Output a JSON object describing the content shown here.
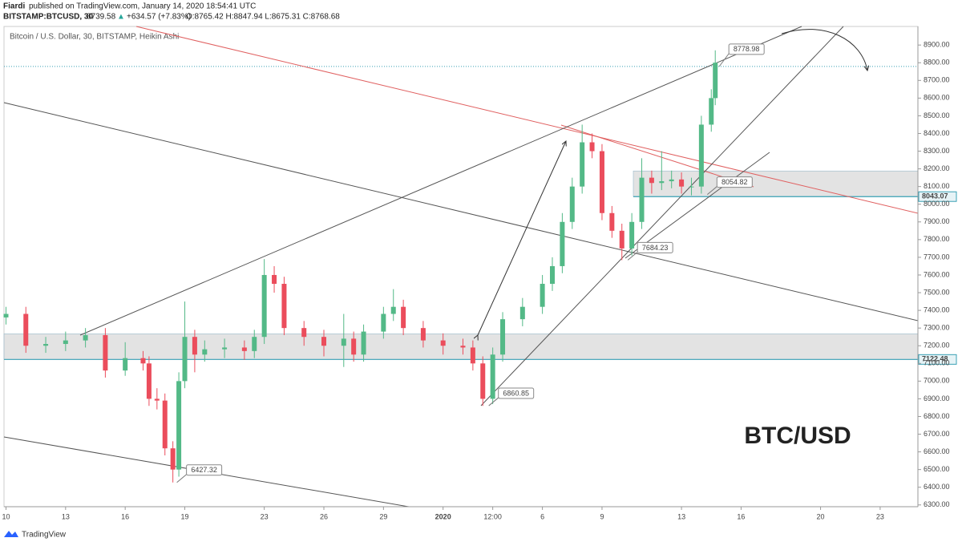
{
  "header": {
    "author": "Fiardi",
    "published": "published on TradingView.com, January 14, 2020 18:54:41 UTC",
    "symbol": "BITSTAMP:BTCUSD, 30",
    "last": "8739.58",
    "arrow": "▲",
    "change": "+634.57 (+7.83%)",
    "ohlc": "O:8765.42 H:8847.94 L:8675.31 C:8768.68"
  },
  "footer": {
    "brand": "TradingView"
  },
  "chart_data": {
    "type": "candlestick",
    "title": "Bitcoin / U.S. Dollar, 30, BITSTAMP, Heikin Ashi",
    "annotation": "BTC/USD",
    "up_color": "#53b987",
    "down_color": "#eb4d5c",
    "xlim": [
      -0.1,
      45.9
    ],
    "ylim": [
      6290,
      9005
    ],
    "xticks": [
      {
        "value": 0,
        "label": "10"
      },
      {
        "value": 3,
        "label": "13"
      },
      {
        "value": 6,
        "label": "16"
      },
      {
        "value": 9,
        "label": "19"
      },
      {
        "value": 13,
        "label": "23"
      },
      {
        "value": 16,
        "label": "26"
      },
      {
        "value": 19,
        "label": "29"
      },
      {
        "value": 22,
        "label": "2020"
      },
      {
        "value": 24.5,
        "label": "12:00"
      },
      {
        "value": 27,
        "label": "6"
      },
      {
        "value": 30,
        "label": "9"
      },
      {
        "value": 34,
        "label": "13"
      },
      {
        "value": 37,
        "label": "16"
      },
      {
        "value": 41,
        "label": "20"
      },
      {
        "value": 44,
        "label": "23"
      }
    ],
    "yticks": [
      {
        "value": 6300,
        "label": "6300.00"
      },
      {
        "value": 6400,
        "label": "6400.00"
      },
      {
        "value": 6500,
        "label": "6500.00"
      },
      {
        "value": 6600,
        "label": "6600.00"
      },
      {
        "value": 6700,
        "label": "6700.00"
      },
      {
        "value": 6800,
        "label": "6800.00"
      },
      {
        "value": 6900,
        "label": "6900.00"
      },
      {
        "value": 7000,
        "label": "7000.00"
      },
      {
        "value": 7100,
        "label": "7100.00"
      },
      {
        "value": 7200,
        "label": "7200.00"
      },
      {
        "value": 7300,
        "label": "7300.00"
      },
      {
        "value": 7400,
        "label": "7400.00"
      },
      {
        "value": 7500,
        "label": "7500.00"
      },
      {
        "value": 7600,
        "label": "7600.00"
      },
      {
        "value": 7700,
        "label": "7700.00"
      },
      {
        "value": 7800,
        "label": "7800.00"
      },
      {
        "value": 7900,
        "label": "7900.00"
      },
      {
        "value": 8000,
        "label": "8000.00"
      },
      {
        "value": 8100,
        "label": "8100.00"
      },
      {
        "value": 8200,
        "label": "8200.00"
      },
      {
        "value": 8300,
        "label": "8300.00"
      },
      {
        "value": 8400,
        "label": "8400.00"
      },
      {
        "value": 8500,
        "label": "8500.00"
      },
      {
        "value": 8600,
        "label": "8600.00"
      },
      {
        "value": 8700,
        "label": "8700.00"
      },
      {
        "value": 8800,
        "label": "8800.00"
      },
      {
        "value": 8900,
        "label": "8900.00"
      }
    ],
    "levels": [
      8043.07,
      7122.48
    ],
    "callouts": [
      {
        "value": 8778.98,
        "x": 35.9
      },
      {
        "value": 8054.82,
        "x": 35.3
      },
      {
        "value": 7684.23,
        "x": 31.3
      },
      {
        "value": 6860.85,
        "x": 24.3
      },
      {
        "value": 6427.32,
        "x": 8.6
      }
    ],
    "x": [
      0,
      1,
      2,
      3,
      4,
      5,
      6,
      6.9,
      7.2,
      7.6,
      8,
      8.4,
      8.7,
      9,
      9.5,
      10,
      11,
      12,
      12.5,
      13,
      13.5,
      14,
      15,
      16,
      17,
      17.5,
      18,
      19,
      19.5,
      20,
      21,
      22,
      23,
      23.5,
      24,
      24.5,
      25,
      26,
      27,
      27.5,
      28,
      28.5,
      29,
      29.5,
      30,
      30.5,
      31,
      31.5,
      32,
      32.5,
      33,
      33.5,
      34,
      34.5,
      35,
      35.5,
      35.7
    ],
    "open": [
      7360,
      7380,
      7200,
      7210,
      7230,
      7260,
      7060,
      7130,
      7100,
      6900,
      6890,
      6620,
      6500,
      7000,
      7250,
      7150,
      7180,
      7190,
      7170,
      7250,
      7600,
      7550,
      7300,
      7250,
      7200,
      7240,
      7150,
      7280,
      7380,
      7420,
      7300,
      7230,
      7200,
      7190,
      7100,
      6900,
      7150,
      7350,
      7420,
      7550,
      7650,
      7900,
      8100,
      8350,
      8300,
      7950,
      7850,
      7750,
      7900,
      8150,
      8120,
      8130,
      8140,
      8100,
      8100,
      8450,
      8600
    ],
    "high": [
      7420,
      7420,
      7250,
      7280,
      7300,
      7300,
      7220,
      7170,
      7140,
      6960,
      6930,
      6660,
      7050,
      7450,
      7290,
      7230,
      7240,
      7230,
      7290,
      7690,
      7650,
      7590,
      7340,
      7290,
      7380,
      7280,
      7320,
      7420,
      7520,
      7460,
      7340,
      7270,
      7240,
      7230,
      7140,
      7190,
      7390,
      7470,
      7600,
      7700,
      7950,
      8150,
      8450,
      8400,
      8340,
      7990,
      7890,
      7950,
      8260,
      8190,
      8300,
      8190,
      8180,
      8150,
      8500,
      8650,
      8870
    ],
    "low": [
      7320,
      7160,
      7160,
      7170,
      7190,
      7020,
      7030,
      7060,
      6860,
      6840,
      6580,
      6427,
      6460,
      6960,
      7050,
      7110,
      7130,
      7120,
      7130,
      7210,
      7500,
      7260,
      7200,
      7140,
      7080,
      7110,
      7110,
      7240,
      7340,
      7260,
      7190,
      7150,
      7150,
      7060,
      6860,
      6870,
      7110,
      7310,
      7380,
      7510,
      7610,
      7860,
      8060,
      8260,
      7910,
      7810,
      7684,
      7710,
      7860,
      8060,
      8080,
      8090,
      8060,
      8050,
      8060,
      8410,
      8560
    ],
    "close": [
      7380,
      7200,
      7210,
      7230,
      7260,
      7060,
      7130,
      7100,
      6900,
      6890,
      6620,
      6500,
      7000,
      7250,
      7150,
      7180,
      7190,
      7170,
      7250,
      7600,
      7550,
      7300,
      7250,
      7200,
      7240,
      7150,
      7280,
      7380,
      7420,
      7300,
      7230,
      7200,
      7190,
      7100,
      6900,
      7150,
      7350,
      7420,
      7550,
      7650,
      7900,
      8100,
      8350,
      8300,
      7950,
      7850,
      7750,
      7900,
      8150,
      8120,
      8130,
      8140,
      8100,
      8100,
      8450,
      8600,
      8800
    ]
  }
}
